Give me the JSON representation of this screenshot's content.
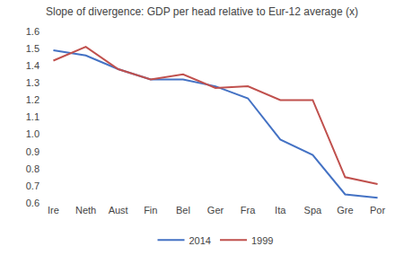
{
  "chart_data": {
    "type": "line",
    "title": "Slope of divergence: GDP per head relative to Eur-12 average (x)",
    "categories": [
      "Ire",
      "Neth",
      "Aust",
      "Fin",
      "Bel",
      "Ger",
      "Fra",
      "Ita",
      "Spa",
      "Gre",
      "Por"
    ],
    "series": [
      {
        "name": "2014",
        "color": "#4472C4",
        "values": [
          1.49,
          1.46,
          1.38,
          1.32,
          1.32,
          1.28,
          1.21,
          0.97,
          0.88,
          0.65,
          0.63
        ]
      },
      {
        "name": "1999",
        "color": "#C0504D",
        "values": [
          1.43,
          1.51,
          1.38,
          1.32,
          1.35,
          1.27,
          1.28,
          1.2,
          1.2,
          0.75,
          0.71
        ]
      }
    ],
    "ylim": [
      0.6,
      1.6
    ],
    "yticks": [
      0.6,
      0.7,
      0.8,
      0.9,
      {
        "value": 1.0,
        "label": "1.0"
      },
      1.1,
      1.2,
      1.3,
      1.4,
      1.5,
      1.6
    ],
    "grid": false,
    "legend": "bottom"
  }
}
